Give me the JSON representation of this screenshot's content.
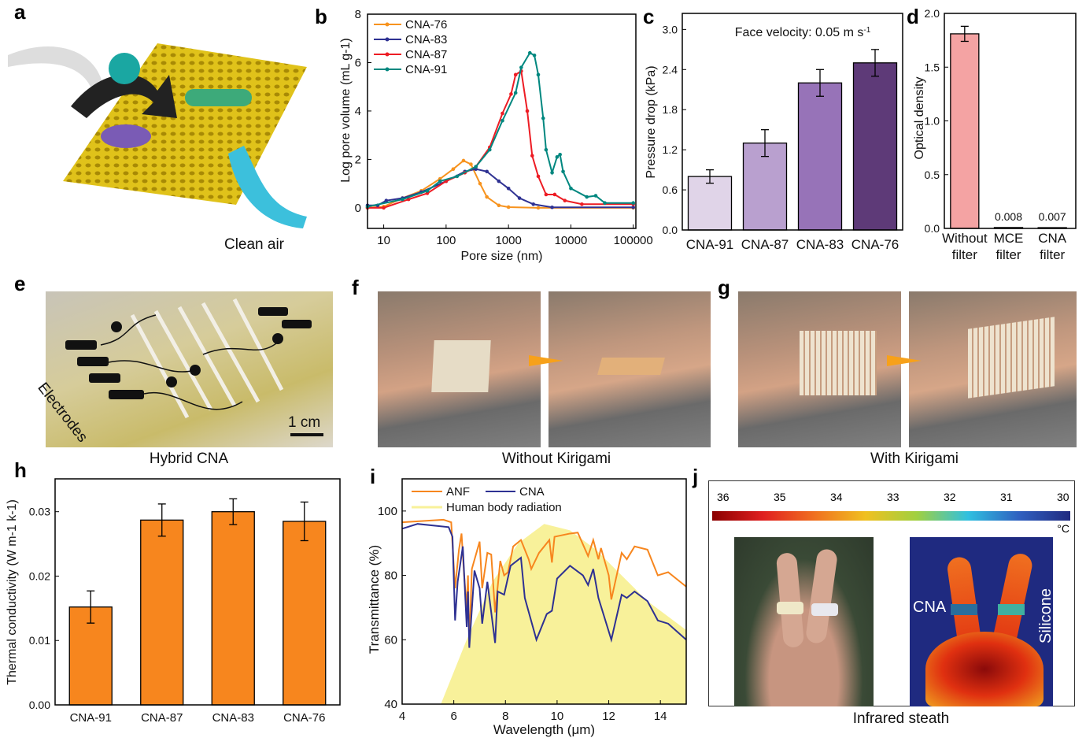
{
  "panel_labels": [
    "a",
    "b",
    "c",
    "d",
    "e",
    "f",
    "g",
    "h",
    "i",
    "j"
  ],
  "captions": {
    "a": "Clean air",
    "e": "Hybrid CNA",
    "e_overlay": "Electrodes",
    "e_scale": "1 cm",
    "f": "Without Kirigami",
    "g": "With Kirigami",
    "j": "Infrared steath",
    "j_left": "CNA",
    "j_right": "Silicone"
  },
  "colorbar": {
    "ticks": [
      "36",
      "35",
      "34",
      "33",
      "32",
      "31",
      "30"
    ],
    "unit": "°C"
  },
  "chart_data": [
    {
      "id": "b",
      "type": "line",
      "xlabel": "Pore size (nm)",
      "ylabel": "Log pore volume (mL g-1)",
      "xscale": "log",
      "xlim": [
        5.5,
        110000
      ],
      "ylim": [
        -0.85,
        8
      ],
      "xticks": [
        "10",
        "100",
        "1000",
        "10000",
        "100000"
      ],
      "yticks": [
        "0",
        "2",
        "4",
        "6",
        "8"
      ],
      "legend": "top-left",
      "series": [
        {
          "name": "CNA-76",
          "color": "#f7931e",
          "points": [
            [
              5.5,
              0
            ],
            [
              10,
              0.05
            ],
            [
              20,
              0.4
            ],
            [
              40,
              0.7
            ],
            [
              80,
              1.2
            ],
            [
              130,
              1.6
            ],
            [
              190,
              1.95
            ],
            [
              250,
              1.8
            ],
            [
              350,
              1.0
            ],
            [
              450,
              0.45
            ],
            [
              700,
              0.1
            ],
            [
              1000,
              0.03
            ],
            [
              3000,
              0
            ],
            [
              100000,
              0
            ]
          ]
        },
        {
          "name": "CNA-83",
          "color": "#2e3192",
          "points": [
            [
              5.5,
              0.1
            ],
            [
              8,
              0.1
            ],
            [
              11,
              0.3
            ],
            [
              20,
              0.4
            ],
            [
              40,
              0.65
            ],
            [
              100,
              1.1
            ],
            [
              200,
              1.5
            ],
            [
              300,
              1.6
            ],
            [
              450,
              1.5
            ],
            [
              700,
              1.1
            ],
            [
              1000,
              0.8
            ],
            [
              1500,
              0.4
            ],
            [
              2500,
              0.15
            ],
            [
              5000,
              0.02
            ],
            [
              100000,
              0.02
            ]
          ]
        },
        {
          "name": "CNA-87",
          "color": "#ed1c24",
          "points": [
            [
              5.5,
              0
            ],
            [
              10,
              0
            ],
            [
              25,
              0.35
            ],
            [
              50,
              0.6
            ],
            [
              100,
              1.1
            ],
            [
              200,
              1.45
            ],
            [
              300,
              1.7
            ],
            [
              500,
              2.5
            ],
            [
              800,
              3.9
            ],
            [
              1100,
              4.7
            ],
            [
              1300,
              5.5
            ],
            [
              1600,
              5.65
            ],
            [
              2000,
              4.0
            ],
            [
              2400,
              2.15
            ],
            [
              3000,
              1.3
            ],
            [
              4000,
              0.55
            ],
            [
              5500,
              0.55
            ],
            [
              8000,
              0.3
            ],
            [
              15000,
              0.15
            ],
            [
              100000,
              0.15
            ]
          ]
        },
        {
          "name": "CNA-91",
          "color": "#00877f",
          "points": [
            [
              5.5,
              0.05
            ],
            [
              20,
              0.35
            ],
            [
              50,
              0.7
            ],
            [
              80,
              1.1
            ],
            [
              150,
              1.3
            ],
            [
              300,
              1.7
            ],
            [
              500,
              2.4
            ],
            [
              800,
              3.6
            ],
            [
              1300,
              4.75
            ],
            [
              1600,
              5.8
            ],
            [
              2200,
              6.4
            ],
            [
              2600,
              6.3
            ],
            [
              3000,
              5.5
            ],
            [
              3600,
              3.7
            ],
            [
              4000,
              2.4
            ],
            [
              5000,
              1.45
            ],
            [
              6000,
              2.1
            ],
            [
              6700,
              2.2
            ],
            [
              7500,
              1.5
            ],
            [
              10000,
              0.8
            ],
            [
              18000,
              0.45
            ],
            [
              25000,
              0.5
            ],
            [
              35000,
              0.2
            ],
            [
              100000,
              0.2
            ]
          ]
        }
      ]
    },
    {
      "id": "c",
      "type": "bar",
      "title": "Face velocity: 0.05 m s-1",
      "ylabel": "Pressure drop (kPa)",
      "ylim": [
        0,
        3.24
      ],
      "yticks": [
        "0.0",
        "0.6",
        "1.2",
        "1.8",
        "2.4",
        "3.0"
      ],
      "categories": [
        "CNA-91",
        "CNA-87",
        "CNA-83",
        "CNA-76"
      ],
      "values": [
        0.8,
        1.3,
        2.2,
        2.5
      ],
      "errors": [
        0.1,
        0.2,
        0.2,
        0.2
      ],
      "colors": [
        "#e0d4e8",
        "#b9a0cf",
        "#9773b8",
        "#5e3a78"
      ]
    },
    {
      "id": "d",
      "type": "bar",
      "ylabel": "Optical density",
      "ylim": [
        0,
        2.0
      ],
      "yticks": [
        "0.0",
        "0.5",
        "1.0",
        "1.5",
        "2.0"
      ],
      "categories": [
        [
          "Without",
          "filter"
        ],
        [
          "MCE",
          "filter"
        ],
        [
          "CNA",
          "filter"
        ]
      ],
      "values": [
        1.81,
        0.008,
        0.007
      ],
      "errors": [
        0.07,
        0,
        0
      ],
      "data_labels": [
        "",
        "0.008",
        "0.007"
      ],
      "colors": [
        "#f4a3a3",
        "#f4a3a3",
        "#f4a3a3"
      ]
    },
    {
      "id": "h",
      "type": "bar",
      "ylabel": "Thermal conductivity (W m-1 k-1)",
      "ylim": [
        0,
        0.0351
      ],
      "yticks": [
        "0.00",
        "0.01",
        "0.02",
        "0.03"
      ],
      "categories": [
        "CNA-91",
        "CNA-87",
        "CNA-83",
        "CNA-76"
      ],
      "values": [
        0.0152,
        0.0287,
        0.03,
        0.0285
      ],
      "errors": [
        0.0025,
        0.0025,
        0.002,
        0.003
      ],
      "colors": [
        "#f7861e",
        "#f7861e",
        "#f7861e",
        "#f7861e"
      ]
    },
    {
      "id": "i",
      "type": "line",
      "xlabel": "Wavelength (μm)",
      "ylabel": "Transmittance (%)",
      "xlim": [
        4,
        15
      ],
      "ylim": [
        40,
        110
      ],
      "xticks": [
        "4",
        "6",
        "8",
        "10",
        "12",
        "14"
      ],
      "yticks": [
        "40",
        "60",
        "80",
        "100"
      ],
      "legend": "top-left",
      "area": {
        "name": "Human body radiation",
        "color": "#f8f19a",
        "points": [
          [
            5.5,
            40
          ],
          [
            6.5,
            60
          ],
          [
            7.5,
            78
          ],
          [
            8.5,
            90
          ],
          [
            9.5,
            96
          ],
          [
            10.5,
            94
          ],
          [
            11.5,
            88
          ],
          [
            12.5,
            80
          ],
          [
            13.5,
            72
          ],
          [
            14.5,
            66
          ],
          [
            15,
            63
          ]
        ]
      },
      "series": [
        {
          "name": "ANF",
          "color": "#f7861e",
          "points": [
            [
              4,
              96.5
            ],
            [
              5.6,
              97.3
            ],
            [
              5.9,
              96.5
            ],
            [
              6.05,
              76
            ],
            [
              6.2,
              88
            ],
            [
              6.3,
              93
            ],
            [
              6.4,
              80
            ],
            [
              6.5,
              70
            ],
            [
              6.55,
              80
            ],
            [
              6.6,
              58
            ],
            [
              6.7,
              82
            ],
            [
              7,
              90.5
            ],
            [
              7.1,
              76
            ],
            [
              7.3,
              87
            ],
            [
              7.45,
              86.5
            ],
            [
              7.6,
              68.5
            ],
            [
              7.8,
              84.5
            ],
            [
              7.95,
              80
            ],
            [
              8.1,
              81
            ],
            [
              8.3,
              89
            ],
            [
              8.6,
              91
            ],
            [
              8.9,
              85
            ],
            [
              9,
              82
            ],
            [
              9.3,
              87
            ],
            [
              9.7,
              91
            ],
            [
              9.8,
              84
            ],
            [
              9.9,
              92
            ],
            [
              10.5,
              93
            ],
            [
              10.8,
              93.3
            ],
            [
              11.2,
              86
            ],
            [
              11.4,
              91
            ],
            [
              11.6,
              85
            ],
            [
              11.7,
              88.5
            ],
            [
              12,
              80
            ],
            [
              12.1,
              72.5
            ],
            [
              12.5,
              87
            ],
            [
              12.7,
              85
            ],
            [
              13,
              89
            ],
            [
              13.5,
              88
            ],
            [
              13.9,
              80
            ],
            [
              14.3,
              81
            ],
            [
              15,
              76.5
            ]
          ]
        },
        {
          "name": "CNA",
          "color": "#2e3192",
          "points": [
            [
              4,
              94.5
            ],
            [
              4.6,
              96
            ],
            [
              5.8,
              95
            ],
            [
              5.95,
              92
            ],
            [
              6.05,
              66
            ],
            [
              6.15,
              78
            ],
            [
              6.35,
              89
            ],
            [
              6.5,
              64
            ],
            [
              6.55,
              75
            ],
            [
              6.6,
              57.5
            ],
            [
              6.8,
              81.5
            ],
            [
              7.0,
              76
            ],
            [
              7.1,
              65
            ],
            [
              7.3,
              78
            ],
            [
              7.6,
              59
            ],
            [
              7.7,
              75
            ],
            [
              7.95,
              74
            ],
            [
              8.2,
              83
            ],
            [
              8.6,
              85.5
            ],
            [
              8.75,
              73
            ],
            [
              9.2,
              60
            ],
            [
              9.6,
              68
            ],
            [
              9.8,
              69
            ],
            [
              10,
              79
            ],
            [
              10.5,
              83
            ],
            [
              11,
              80
            ],
            [
              11.2,
              77
            ],
            [
              11.4,
              82
            ],
            [
              11.6,
              73
            ],
            [
              12.1,
              60
            ],
            [
              12.5,
              74
            ],
            [
              12.7,
              73
            ],
            [
              13,
              75
            ],
            [
              13.5,
              72
            ],
            [
              13.9,
              66
            ],
            [
              14.3,
              65
            ],
            [
              15,
              60
            ]
          ]
        }
      ]
    }
  ]
}
